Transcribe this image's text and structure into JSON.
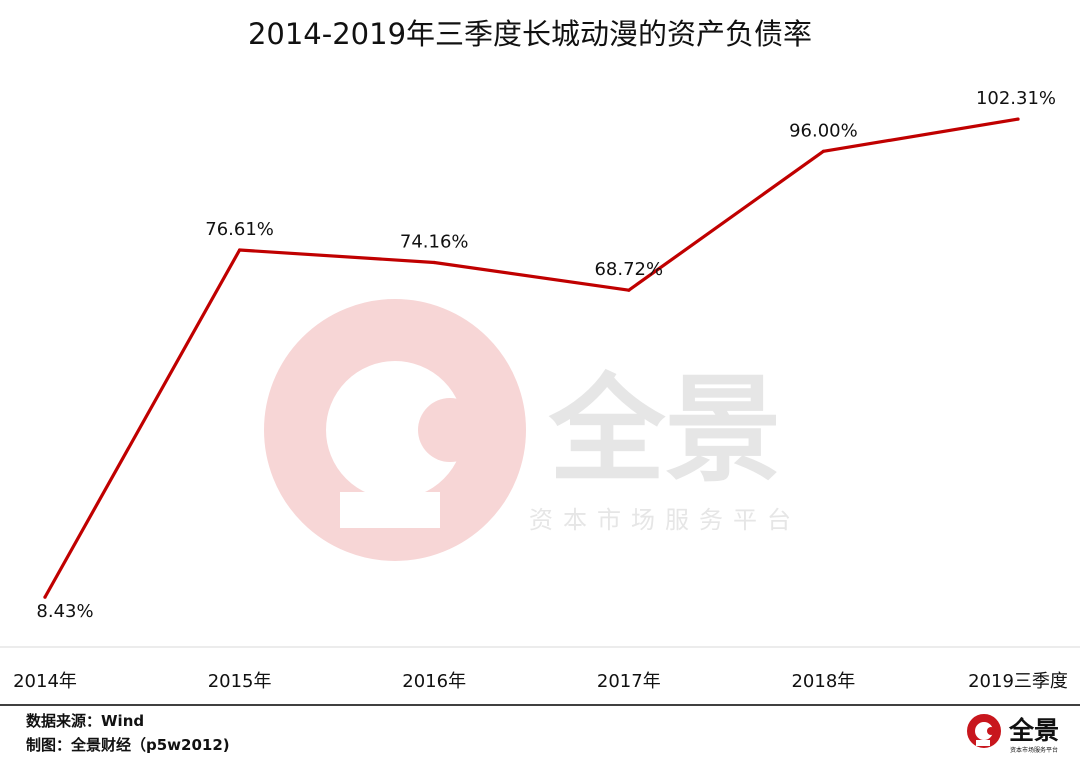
{
  "chart_data": {
    "type": "line",
    "title": "2014-2019年三季度长城动漫的资产负债率",
    "categories": [
      "2014年",
      "2015年",
      "2016年",
      "2017年",
      "2018年",
      "2019三季度"
    ],
    "values": [
      8.43,
      76.61,
      74.16,
      68.72,
      96.0,
      102.31
    ],
    "data_labels": [
      "8.43%",
      "76.61%",
      "74.16%",
      "68.72%",
      "96.00%",
      "102.31%"
    ],
    "ylim": [
      0,
      110
    ],
    "grid": false,
    "legend": "none",
    "colors": {
      "line": "#c00000",
      "text": "#111111",
      "axis": "#d9d9d9",
      "footer_rule": "#000000",
      "watermark_swirl": "#f7d6d6",
      "watermark_text": "#e6e6e6",
      "logo_red": "#c8161d"
    }
  },
  "watermark": {
    "brand": "全景",
    "tagline": "资本市场服务平台"
  },
  "footer": {
    "source": "数据来源：Wind",
    "credit": "制图：全景财经（p5w2012)"
  },
  "logo": {
    "brand": "全景",
    "tagline": "资本市场服务平台",
    "icon": "p5w-swirl-icon"
  }
}
